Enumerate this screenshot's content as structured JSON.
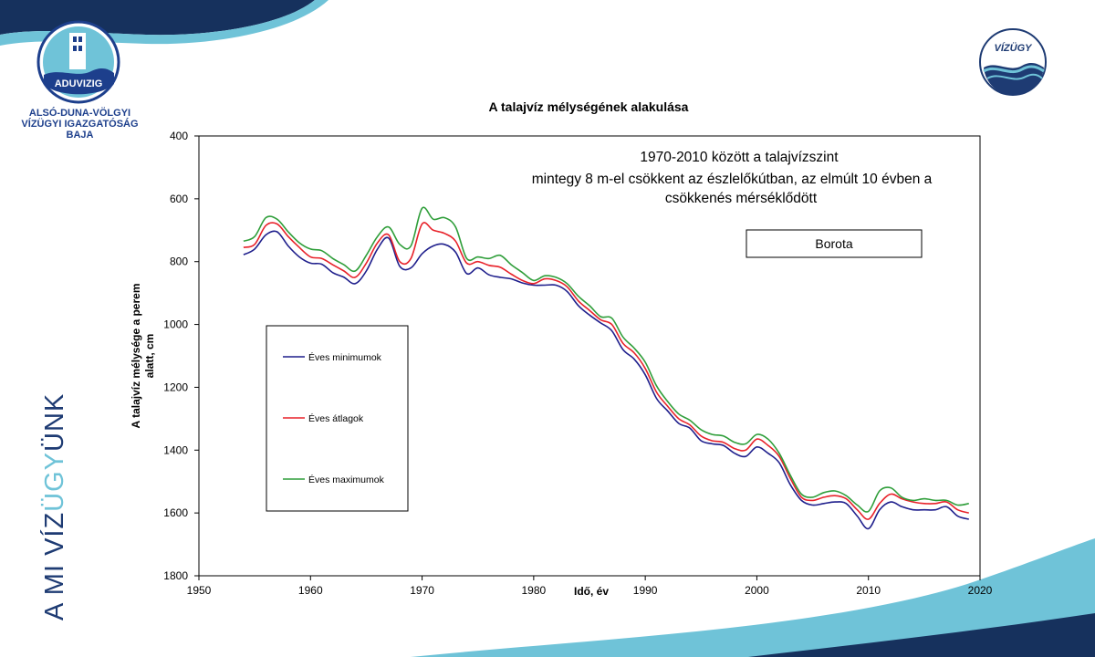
{
  "header": {
    "org_logo_text": "ADUVIZIG",
    "org_name_lines": [
      "ALSÓ-DUNA-VÖLGYI",
      "VÍZÜGYI IGAZGATÓSÁG",
      "BAJA"
    ],
    "brand_logo_text": "VÍZÜGY"
  },
  "side_slogan": {
    "part1": "A MI VÍZ",
    "part2": "ÜGY",
    "part3": "ÜNK"
  },
  "colors": {
    "minimum": "#1f1f8c",
    "average": "#e8222a",
    "maximum": "#2f9e3a",
    "brand_dark": "#1e3b73",
    "brand_light": "#6fc3d8"
  },
  "chart_data": {
    "type": "line",
    "title": "A talajvíz mélységének alakulása",
    "xlabel": "Idő, év",
    "ylabel": "A talajvíz mélysége a perem alatt, cm",
    "ylabel_lines": [
      "A talajvíz mélysége a perem",
      "alatt, cm"
    ],
    "xlim": [
      1950,
      2020
    ],
    "ylim": [
      400,
      1800
    ],
    "y_inverted": true,
    "x_ticks": [
      1950,
      1960,
      1970,
      1980,
      1990,
      2000,
      2010,
      2020
    ],
    "y_ticks": [
      400,
      600,
      800,
      1000,
      1200,
      1400,
      1600,
      1800
    ],
    "grid": false,
    "annotation_lines": [
      "1970-2010 között a talajvízszint",
      "mintegy 8 m-el csökkent az észlelőkútban,  az elmúlt 10 évben a",
      "csökkenés mérséklődött"
    ],
    "station_label": "Borota",
    "legend_position": "left",
    "x": [
      1954,
      1955,
      1956,
      1957,
      1958,
      1959,
      1960,
      1961,
      1962,
      1963,
      1964,
      1965,
      1966,
      1967,
      1968,
      1969,
      1970,
      1971,
      1972,
      1973,
      1974,
      1975,
      1976,
      1977,
      1978,
      1979,
      1980,
      1981,
      1982,
      1983,
      1984,
      1985,
      1986,
      1987,
      1988,
      1989,
      1990,
      1991,
      1992,
      1993,
      1994,
      1995,
      1996,
      1997,
      1998,
      1999,
      2000,
      2001,
      2002,
      2003,
      2004,
      2005,
      2006,
      2007,
      2008,
      2009,
      2010,
      2011,
      2012,
      2013,
      2014,
      2015,
      2016,
      2017,
      2018,
      2019
    ],
    "series": [
      {
        "name": "Éves minimumok",
        "color": "#1f1f8c",
        "values": [
          778,
          760,
          715,
          705,
          750,
          785,
          805,
          808,
          835,
          850,
          870,
          830,
          760,
          725,
          815,
          820,
          775,
          750,
          745,
          770,
          838,
          820,
          842,
          850,
          855,
          868,
          875,
          875,
          875,
          895,
          940,
          970,
          995,
          1020,
          1080,
          1110,
          1160,
          1235,
          1275,
          1315,
          1330,
          1370,
          1380,
          1385,
          1410,
          1420,
          1390,
          1410,
          1440,
          1510,
          1560,
          1575,
          1570,
          1565,
          1570,
          1610,
          1650,
          1590,
          1565,
          1580,
          1590,
          1590,
          1590,
          1580,
          1610,
          1620
        ]
      },
      {
        "name": "Éves átlagok",
        "color": "#e8222a",
        "values": [
          755,
          745,
          685,
          680,
          720,
          755,
          785,
          790,
          810,
          830,
          850,
          805,
          740,
          715,
          800,
          790,
          680,
          700,
          710,
          735,
          805,
          800,
          812,
          818,
          840,
          860,
          870,
          855,
          860,
          880,
          925,
          955,
          985,
          1000,
          1060,
          1090,
          1140,
          1215,
          1260,
          1300,
          1320,
          1355,
          1370,
          1375,
          1395,
          1400,
          1365,
          1385,
          1420,
          1490,
          1550,
          1560,
          1550,
          1545,
          1555,
          1590,
          1620,
          1570,
          1540,
          1555,
          1565,
          1570,
          1570,
          1565,
          1590,
          1600
        ]
      },
      {
        "name": "Éves maximumok",
        "color": "#2f9e3a",
        "values": [
          735,
          720,
          660,
          665,
          705,
          740,
          760,
          765,
          790,
          810,
          830,
          780,
          720,
          690,
          745,
          750,
          630,
          665,
          660,
          690,
          790,
          785,
          790,
          780,
          810,
          835,
          860,
          845,
          850,
          870,
          910,
          940,
          975,
          980,
          1040,
          1075,
          1120,
          1195,
          1245,
          1285,
          1305,
          1335,
          1350,
          1355,
          1375,
          1380,
          1350,
          1365,
          1410,
          1480,
          1540,
          1550,
          1535,
          1530,
          1545,
          1575,
          1595,
          1530,
          1520,
          1550,
          1560,
          1555,
          1560,
          1560,
          1575,
          1570
        ]
      }
    ]
  }
}
